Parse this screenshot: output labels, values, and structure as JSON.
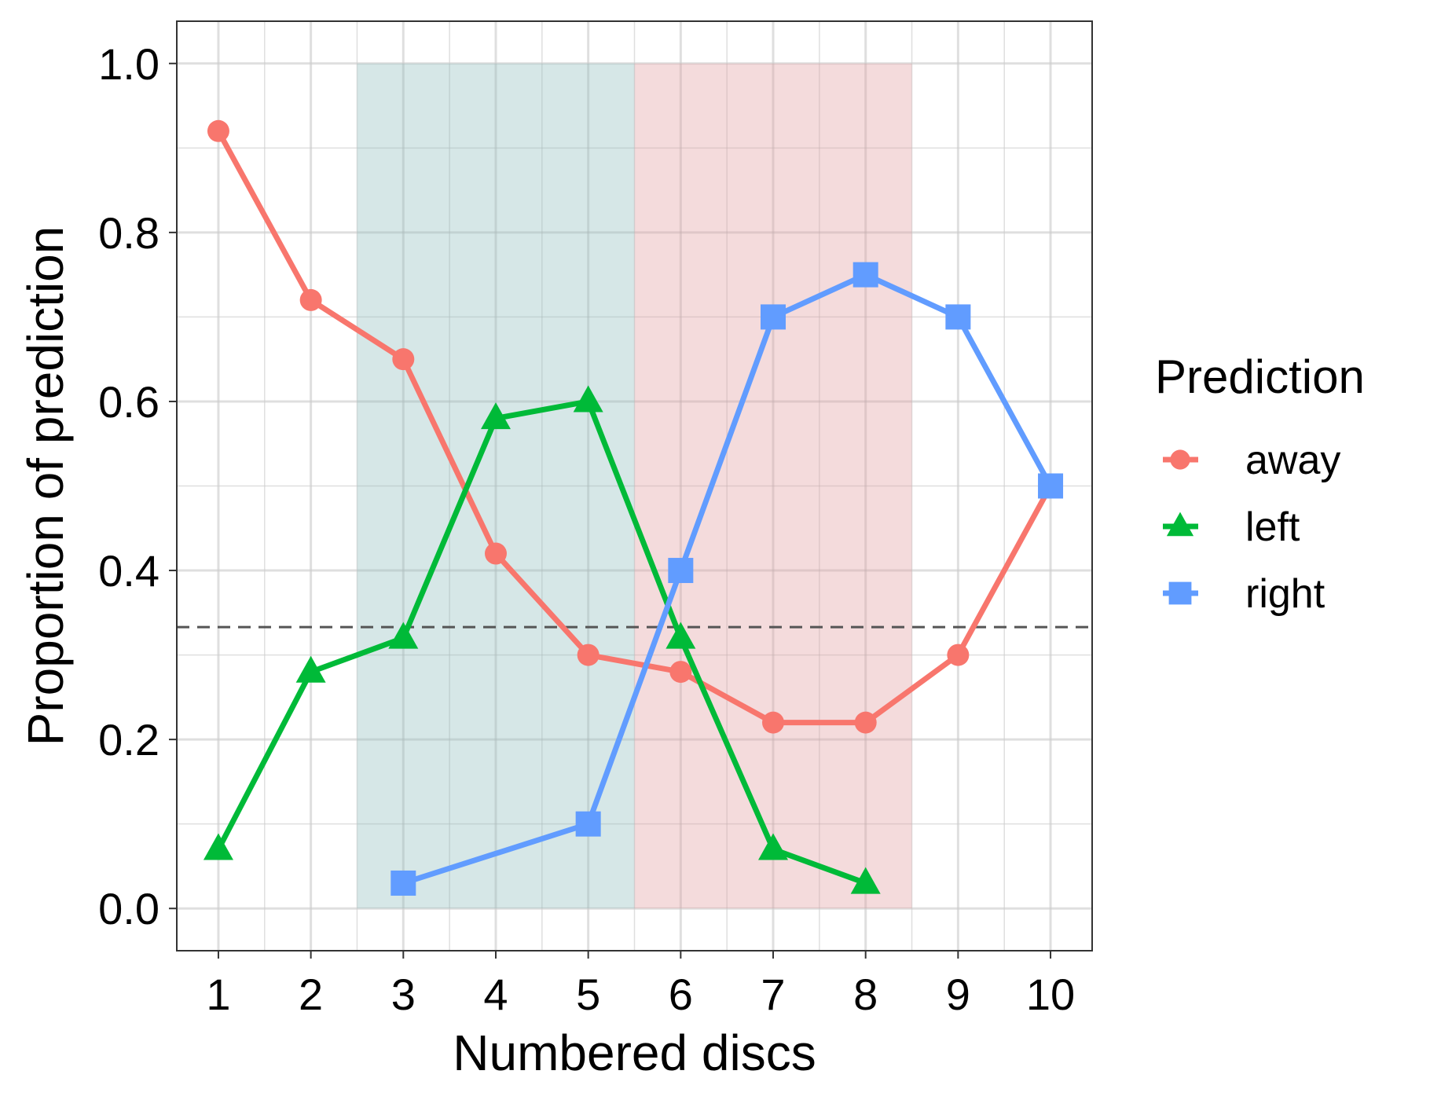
{
  "chart_data": {
    "type": "line",
    "xlabel": "Numbered discs",
    "ylabel": "Proportion of prediction",
    "x": [
      1,
      2,
      3,
      4,
      5,
      6,
      7,
      8,
      9,
      10
    ],
    "x_tick_labels": [
      "1",
      "2",
      "3",
      "4",
      "5",
      "6",
      "7",
      "8",
      "9",
      "10"
    ],
    "y_ticks": [
      0.0,
      0.2,
      0.4,
      0.6,
      0.8,
      1.0
    ],
    "y_tick_labels": [
      "0.0",
      "0.2",
      "0.4",
      "0.6",
      "0.8",
      "1.0"
    ],
    "xlim": [
      0.55,
      10.45
    ],
    "ylim": [
      -0.05,
      1.05
    ],
    "grid": true,
    "legend": {
      "title": "Prediction",
      "position": "right"
    },
    "series": [
      {
        "name": "away",
        "color": "#F8766D",
        "marker": "circle",
        "x": [
          1,
          2,
          3,
          4,
          5,
          6,
          7,
          8,
          9,
          10
        ],
        "values": [
          0.92,
          0.72,
          0.65,
          0.42,
          0.3,
          0.28,
          0.22,
          0.22,
          0.3,
          0.5
        ]
      },
      {
        "name": "left",
        "color": "#00BA38",
        "marker": "triangle",
        "x": [
          1,
          2,
          3,
          4,
          5,
          6,
          7,
          8
        ],
        "values": [
          0.07,
          0.28,
          0.32,
          0.58,
          0.6,
          0.32,
          0.07,
          0.03
        ]
      },
      {
        "name": "right",
        "color": "#619CFF",
        "marker": "square",
        "x": [
          3,
          5,
          6,
          7,
          8,
          9,
          10
        ],
        "values": [
          0.03,
          0.1,
          0.4,
          0.7,
          0.75,
          0.7,
          0.5
        ]
      }
    ],
    "reference_line": {
      "y": 0.333,
      "style": "dashed",
      "color": "#555555"
    },
    "shaded_regions": [
      {
        "x_from": 2.5,
        "x_to": 5.5,
        "y_from": 0,
        "y_to": 1,
        "color": "#B5D3D3"
      },
      {
        "x_from": 5.5,
        "x_to": 8.5,
        "y_from": 0,
        "y_to": 1,
        "color": "#EBBEC0"
      }
    ]
  }
}
